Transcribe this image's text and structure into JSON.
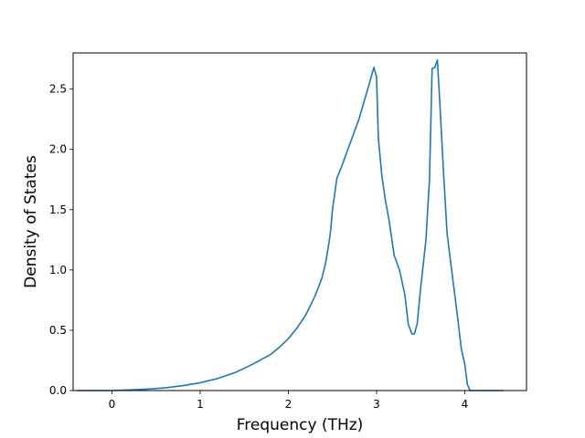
{
  "chart_data": {
    "type": "line",
    "title": "",
    "xlabel": "Frequency (THz)",
    "ylabel": "Density of States",
    "xlim": [
      -0.44,
      4.7
    ],
    "ylim": [
      0.0,
      2.8
    ],
    "xticks": [
      0,
      1,
      2,
      3,
      4
    ],
    "yticks": [
      0.0,
      0.5,
      1.0,
      1.5,
      2.0,
      2.5
    ],
    "xtick_labels": [
      "0",
      "1",
      "2",
      "3",
      "4"
    ],
    "ytick_labels": [
      "0.0",
      "0.5",
      "1.0",
      "1.5",
      "2.0",
      "2.5"
    ],
    "grid": false,
    "legend": "none",
    "series": [
      {
        "color": "#1f77b4",
        "x": [
          -0.4,
          -0.2,
          0.0,
          0.2,
          0.4,
          0.6,
          0.8,
          1.0,
          1.2,
          1.4,
          1.6,
          1.8,
          1.9,
          2.0,
          2.1,
          2.2,
          2.3,
          2.38,
          2.42,
          2.46,
          2.48,
          2.5,
          2.55,
          2.6,
          2.7,
          2.8,
          2.9,
          2.97,
          3.0,
          3.02,
          3.06,
          3.1,
          3.14,
          3.2,
          3.26,
          3.32,
          3.36,
          3.4,
          3.43,
          3.46,
          3.5,
          3.56,
          3.6,
          3.63,
          3.66,
          3.69,
          3.72,
          3.76,
          3.8,
          3.86,
          3.92,
          3.96,
          4.0,
          4.03,
          4.06,
          4.1,
          4.2,
          4.3,
          4.44
        ],
        "y": [
          0.0,
          0.0,
          0.0,
          0.005,
          0.012,
          0.022,
          0.04,
          0.065,
          0.1,
          0.15,
          0.22,
          0.3,
          0.36,
          0.43,
          0.52,
          0.63,
          0.78,
          0.93,
          1.05,
          1.22,
          1.33,
          1.5,
          1.76,
          1.85,
          2.05,
          2.25,
          2.5,
          2.68,
          2.6,
          2.1,
          1.78,
          1.58,
          1.42,
          1.12,
          1.0,
          0.8,
          0.55,
          0.47,
          0.47,
          0.55,
          0.85,
          1.25,
          1.75,
          2.67,
          2.68,
          2.74,
          2.35,
          1.8,
          1.3,
          0.95,
          0.6,
          0.35,
          0.22,
          0.05,
          0.0,
          0.0,
          0.0,
          0.0,
          0.0
        ]
      }
    ]
  }
}
